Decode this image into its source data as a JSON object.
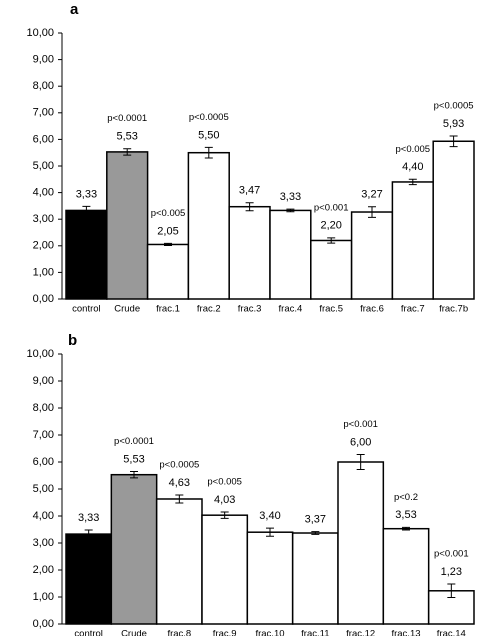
{
  "chart_data": [
    {
      "type": "bar",
      "panel_label": "a",
      "categories": [
        "control",
        "Crude",
        "frac.1",
        "frac.2",
        "frac.3",
        "frac.4",
        "frac.5",
        "frac.6",
        "frac.7",
        "frac.7b"
      ],
      "values": [
        3.33,
        5.53,
        2.05,
        5.5,
        3.47,
        3.33,
        2.2,
        3.27,
        4.4,
        5.93
      ],
      "value_labels": [
        "3,33",
        "5,53",
        "2,05",
        "5,50",
        "3,47",
        "3,33",
        "2,20",
        "3,27",
        "4,40",
        "5,93"
      ],
      "errors": [
        0.15,
        0.12,
        0.04,
        0.2,
        0.15,
        0.05,
        0.1,
        0.2,
        0.1,
        0.2
      ],
      "colors": [
        "#000000",
        "#999999",
        "#ffffff",
        "#ffffff",
        "#ffffff",
        "#ffffff",
        "#ffffff",
        "#ffffff",
        "#ffffff",
        "#ffffff"
      ],
      "annotations": [
        null,
        "p<0.0001",
        "p<0.005",
        "p<0.0005",
        null,
        null,
        "p<0.001",
        null,
        "p<0.005",
        "p<0.0005"
      ],
      "ylim": [
        0,
        10
      ],
      "yticks": [
        {
          "value": 0,
          "label": "0,00"
        },
        {
          "value": 1,
          "label": "1,00"
        },
        {
          "value": 2,
          "label": "2,00"
        },
        {
          "value": 3,
          "label": "3,00"
        },
        {
          "value": 4,
          "label": "4,00"
        },
        {
          "value": 5,
          "label": "5,00"
        },
        {
          "value": 6,
          "label": "6,00"
        },
        {
          "value": 7,
          "label": "7,00"
        },
        {
          "value": 8,
          "label": "8,00"
        },
        {
          "value": 9,
          "label": "9,00"
        },
        {
          "value": 10,
          "label": "10,00"
        }
      ]
    },
    {
      "type": "bar",
      "panel_label": "b",
      "categories": [
        "control",
        "Crude",
        "frac.8",
        "frac.9",
        "frac.10",
        "frac.11",
        "frac.12",
        "frac.13",
        "frac.14"
      ],
      "values": [
        3.33,
        5.53,
        4.63,
        4.03,
        3.4,
        3.37,
        6.0,
        3.53,
        1.23
      ],
      "value_labels": [
        "3,33",
        "5,53",
        "4,63",
        "4,03",
        "3,40",
        "3,37",
        "6,00",
        "3,53",
        "1,23"
      ],
      "errors": [
        0.15,
        0.12,
        0.15,
        0.12,
        0.15,
        0.05,
        0.28,
        0.05,
        0.25
      ],
      "colors": [
        "#000000",
        "#999999",
        "#ffffff",
        "#ffffff",
        "#ffffff",
        "#ffffff",
        "#ffffff",
        "#ffffff",
        "#ffffff"
      ],
      "annotations": [
        null,
        "p<0.0001",
        "p<0.0005",
        "p<0.005",
        null,
        null,
        "p<0.001",
        "p<0.2",
        "p<0.001"
      ],
      "ylim": [
        0,
        10
      ],
      "yticks": [
        {
          "value": 0,
          "label": "0,00"
        },
        {
          "value": 1,
          "label": "1,00"
        },
        {
          "value": 2,
          "label": "2,00"
        },
        {
          "value": 3,
          "label": "3,00"
        },
        {
          "value": 4,
          "label": "4,00"
        },
        {
          "value": 5,
          "label": "5,00"
        },
        {
          "value": 6,
          "label": "6,00"
        },
        {
          "value": 7,
          "label": "7,00"
        },
        {
          "value": 8,
          "label": "8,00"
        },
        {
          "value": 9,
          "label": "9,00"
        },
        {
          "value": 10,
          "label": "10,00"
        }
      ]
    }
  ]
}
